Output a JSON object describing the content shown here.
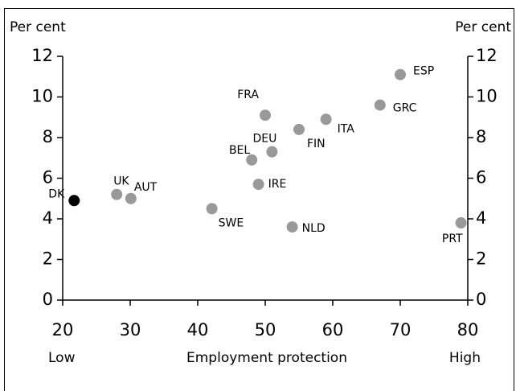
{
  "chart_data": {
    "type": "scatter",
    "y_label": "Per cent",
    "y2_label": "Per cent",
    "x_label": "Employment protection",
    "x_low_label": "Low",
    "x_high_label": "High",
    "labels": [
      "DK",
      "UK",
      "AUT",
      "SWE",
      "BEL",
      "FRA",
      "IRE",
      "DEU",
      "NLD",
      "FIN",
      "ITA",
      "GRC",
      "ESP",
      "PRT"
    ],
    "x": [
      21.7,
      28,
      30.1,
      42.1,
      48,
      50,
      49,
      51,
      54,
      55,
      59,
      67,
      70,
      79
    ],
    "values": [
      4.9,
      5.2,
      5.0,
      4.5,
      6.9,
      9.1,
      5.7,
      7.3,
      3.6,
      8.4,
      8.9,
      9.6,
      11.1,
      3.8
    ],
    "colors": [
      "#000000",
      "#999999",
      "#999999",
      "#999999",
      "#999999",
      "#999999",
      "#999999",
      "#999999",
      "#999999",
      "#999999",
      "#999999",
      "#999999",
      "#999999",
      "#999999"
    ],
    "xlim": [
      20,
      80
    ],
    "xticks": [
      20,
      30,
      40,
      50,
      60,
      70,
      80
    ],
    "ylim": [
      0,
      12
    ],
    "yticks": [
      0,
      2,
      4,
      6,
      8,
      10,
      12
    ],
    "y2lim": [
      0,
      12
    ],
    "y2ticks": [
      0,
      2,
      4,
      6,
      8,
      10,
      12
    ]
  }
}
